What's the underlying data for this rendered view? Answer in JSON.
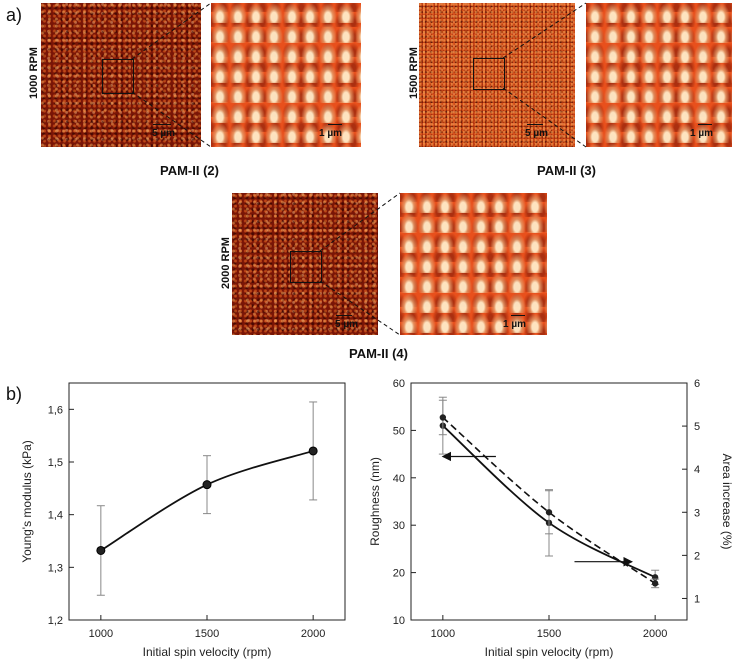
{
  "panel_a": {
    "letter": "a)",
    "images": [
      {
        "rpm": "1000 RPM",
        "label": "PAM-II (2)",
        "overview_scale": "5 µm",
        "zoom_scale": "1 µm"
      },
      {
        "rpm": "1500 RPM",
        "label": "PAM-II (3)",
        "overview_scale": "5 µm",
        "zoom_scale": "1 µm"
      },
      {
        "rpm": "2000 RPM",
        "label": "PAM-II (4)",
        "overview_scale": "5 µm",
        "zoom_scale": "1 µm"
      }
    ]
  },
  "panel_b": {
    "letter": "b)"
  },
  "chart_data": [
    {
      "type": "line",
      "x": [
        1000,
        1500,
        2000
      ],
      "series": [
        {
          "name": "Young's modulus",
          "values": [
            1.332,
            1.457,
            1.521
          ],
          "error": [
            0.085,
            0.055,
            0.093
          ]
        }
      ],
      "xlabel": "Initial spin velocity (rpm)",
      "ylabel": "Young's modulus (kPa)",
      "xlim": [
        850,
        2150
      ],
      "ylim": [
        1.2,
        1.65
      ],
      "xticks": [
        1000,
        1500,
        2000
      ],
      "xtick_labels": [
        "1000",
        "1500",
        "2000"
      ],
      "yticks": [
        1.2,
        1.3,
        1.4,
        1.5,
        1.6
      ],
      "ytick_labels": [
        "1,2",
        "1,3",
        "1,4",
        "1,5",
        "1,6"
      ],
      "fit": "smooth curve through points"
    },
    {
      "type": "line",
      "x": [
        1000,
        1500,
        2000
      ],
      "series": [
        {
          "name": "Roughness",
          "axis": "left",
          "values": [
            51,
            30.5,
            19
          ],
          "error": [
            6,
            7,
            1.5
          ],
          "style": "solid"
        },
        {
          "name": "Area increase",
          "axis": "right",
          "values": [
            5.2,
            3.0,
            1.35
          ],
          "error": [
            0.4,
            0.5,
            0.1
          ],
          "style": "dashed"
        }
      ],
      "xlabel": "Initial spin velocity (rpm)",
      "ylabel": "Roughness (nm)",
      "y2label": "Area increase (%)",
      "xlim": [
        850,
        2150
      ],
      "ylim": [
        10,
        60
      ],
      "y2lim": [
        0.5,
        6
      ],
      "xticks": [
        1000,
        1500,
        2000
      ],
      "xtick_labels": [
        "1000",
        "1500",
        "2000"
      ],
      "yticks": [
        10,
        20,
        30,
        40,
        50,
        60
      ],
      "ytick_labels": [
        "10",
        "20",
        "30",
        "40",
        "50",
        "60"
      ],
      "y2ticks": [
        1,
        2,
        3,
        4,
        5,
        6
      ],
      "y2tick_labels": [
        "1",
        "2",
        "3",
        "4",
        "5",
        "6"
      ],
      "annotations": [
        {
          "text": "arrow pointing left",
          "near": "1000 rpm, 45 nm"
        },
        {
          "text": "arrow pointing right",
          "near": "1850 rpm, 17 nm"
        }
      ]
    }
  ]
}
